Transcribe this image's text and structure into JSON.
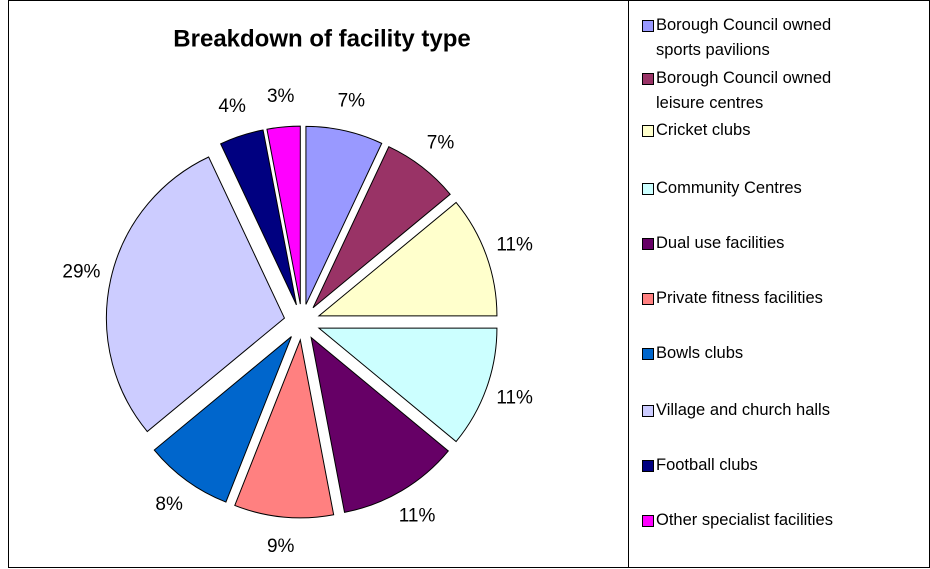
{
  "chart_data": {
    "type": "pie",
    "title": "Breakdown of facility type",
    "categories": [
      "Borough Council owned sports pavilions",
      "Borough Council owned leisure centres",
      "Cricket clubs",
      "Community Centres",
      "Dual use facilities",
      "Private fitness facilities",
      "Bowls clubs",
      "Village and church halls",
      "Football clubs",
      "Other specialist facilities"
    ],
    "values": [
      7,
      7,
      11,
      11,
      11,
      9,
      8,
      29,
      4,
      3
    ],
    "value_labels": [
      "7%",
      "7%",
      "11%",
      "11%",
      "11%",
      "9%",
      "8%",
      "29%",
      "4%",
      "3%"
    ],
    "colors": [
      "#9999ff",
      "#993366",
      "#ffffcc",
      "#ccffff",
      "#660066",
      "#ff8080",
      "#0066cc",
      "#ccccff",
      "#000080",
      "#ff00ff"
    ],
    "legend": "right"
  }
}
